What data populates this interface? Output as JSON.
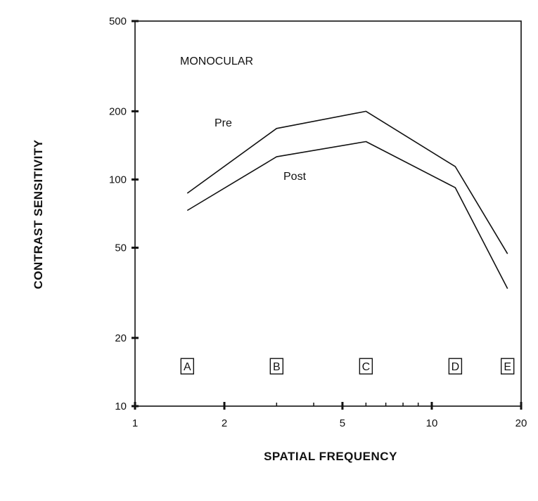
{
  "chart_data": {
    "type": "line",
    "title": "",
    "xlabel": "SPATIAL FREQUENCY",
    "ylabel": "CONTRAST SENSITIVITY",
    "x_scale": "log",
    "y_scale": "log",
    "xlim": [
      1,
      20
    ],
    "ylim": [
      10,
      500
    ],
    "x_ticks": [
      {
        "value": 1,
        "label": "1"
      },
      {
        "value": 2,
        "label": "2"
      },
      {
        "value": 5,
        "label": "5"
      },
      {
        "value": 10,
        "label": "10"
      },
      {
        "value": 20,
        "label": "20"
      }
    ],
    "x_minor_ticks": [
      3,
      4,
      6,
      7,
      8,
      9
    ],
    "y_ticks": [
      {
        "value": 10,
        "label": "10"
      },
      {
        "value": 20,
        "label": "20"
      },
      {
        "value": 50,
        "label": "50"
      },
      {
        "value": 100,
        "label": "100"
      },
      {
        "value": 200,
        "label": "200"
      },
      {
        "value": 500,
        "label": "500"
      }
    ],
    "grid": false,
    "annotations": {
      "condition": "MONOCULAR"
    },
    "series": [
      {
        "name": "Pre",
        "x": [
          1.5,
          3,
          6,
          12,
          18
        ],
        "y": [
          87,
          168,
          200,
          114,
          47
        ]
      },
      {
        "name": "Post",
        "x": [
          1.5,
          3,
          6,
          12,
          18
        ],
        "y": [
          73,
          126,
          147,
          92,
          33
        ]
      }
    ],
    "frequency_markers": [
      {
        "label": "A",
        "x": 1.5
      },
      {
        "label": "B",
        "x": 3
      },
      {
        "label": "C",
        "x": 6
      },
      {
        "label": "D",
        "x": 12
      },
      {
        "label": "E",
        "x": 18
      }
    ],
    "colors": {
      "line": "#111111",
      "background": "#ffffff"
    }
  }
}
